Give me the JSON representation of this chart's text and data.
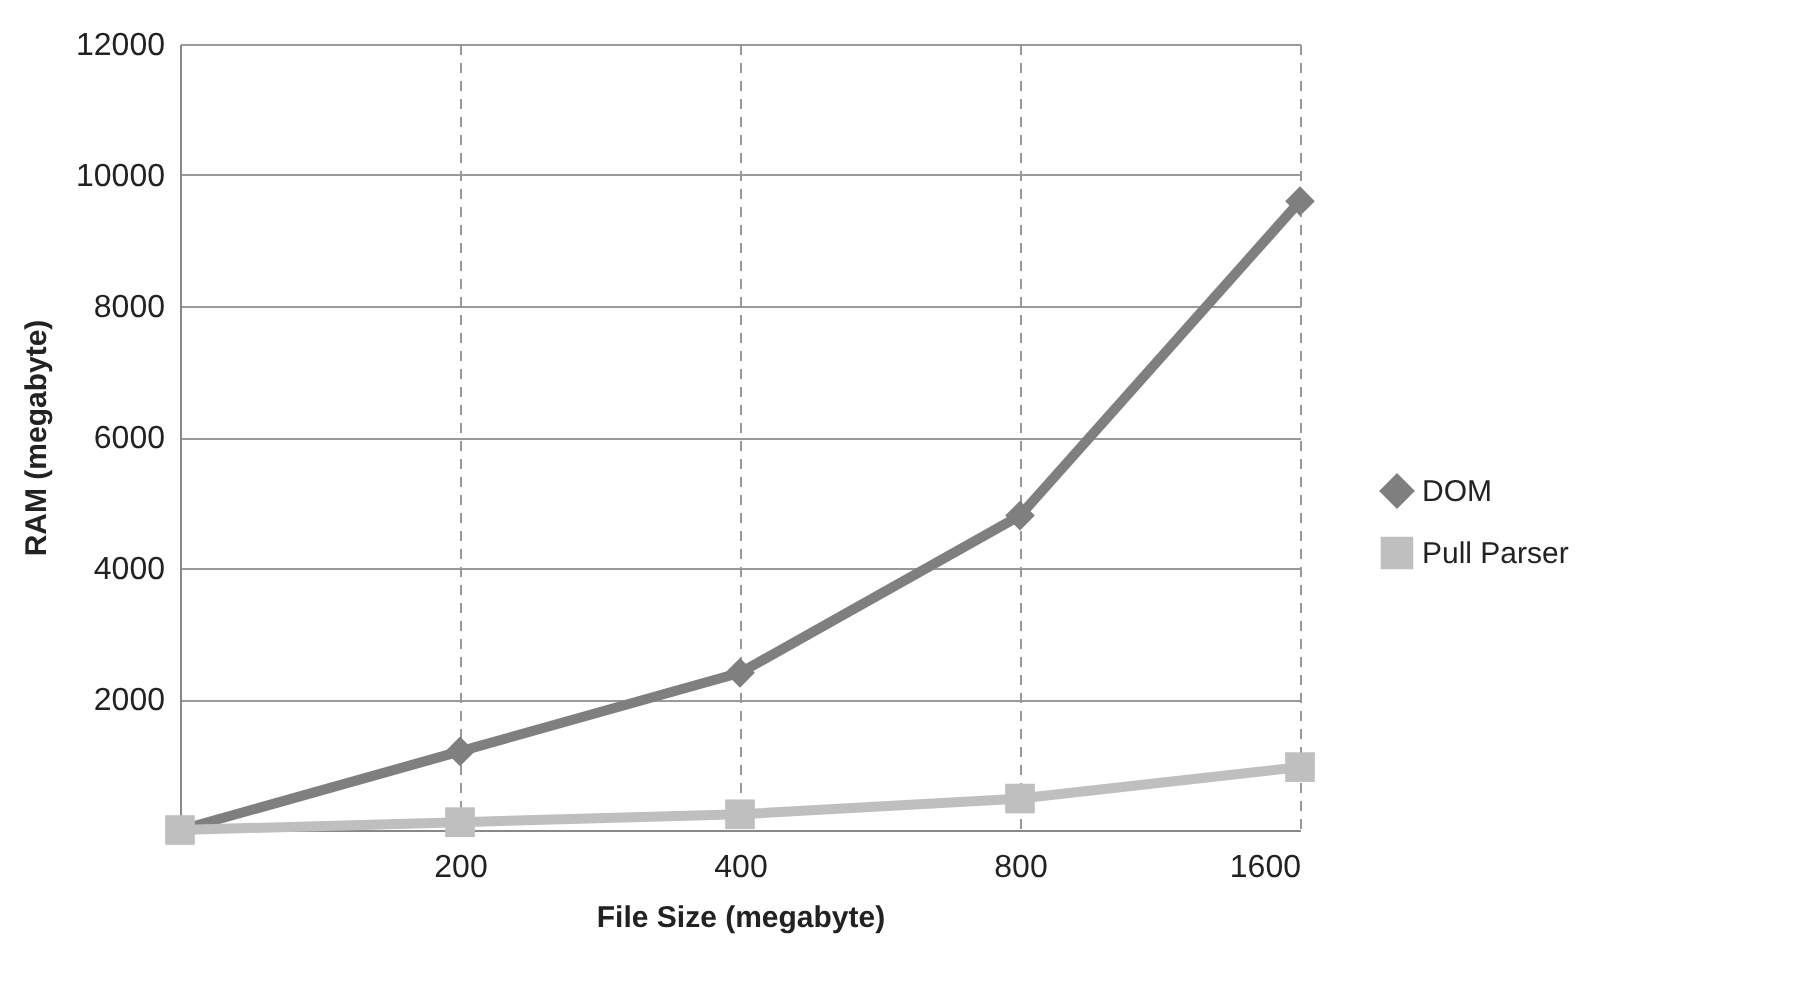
{
  "chart_data": {
    "type": "line",
    "xlabel": "File Size (megabyte)",
    "ylabel": "RAM (megabyte)",
    "categories": [
      null,
      "200",
      "400",
      "800",
      "1600"
    ],
    "series": [
      {
        "name": "DOM",
        "color": "#7f7f7f",
        "marker": "diamond",
        "values": [
          0,
          1200,
          2400,
          4800,
          9600
        ]
      },
      {
        "name": "Pull Parser",
        "color": "#bfbfbf",
        "marker": "square",
        "values": [
          0,
          120,
          240,
          480,
          960
        ]
      }
    ],
    "ylim": [
      0,
      12000
    ],
    "yticks": [
      {
        "value": 0,
        "label": null
      },
      2000,
      4000,
      6000,
      8000,
      10000,
      12000
    ],
    "grid": true,
    "legend": "right"
  }
}
